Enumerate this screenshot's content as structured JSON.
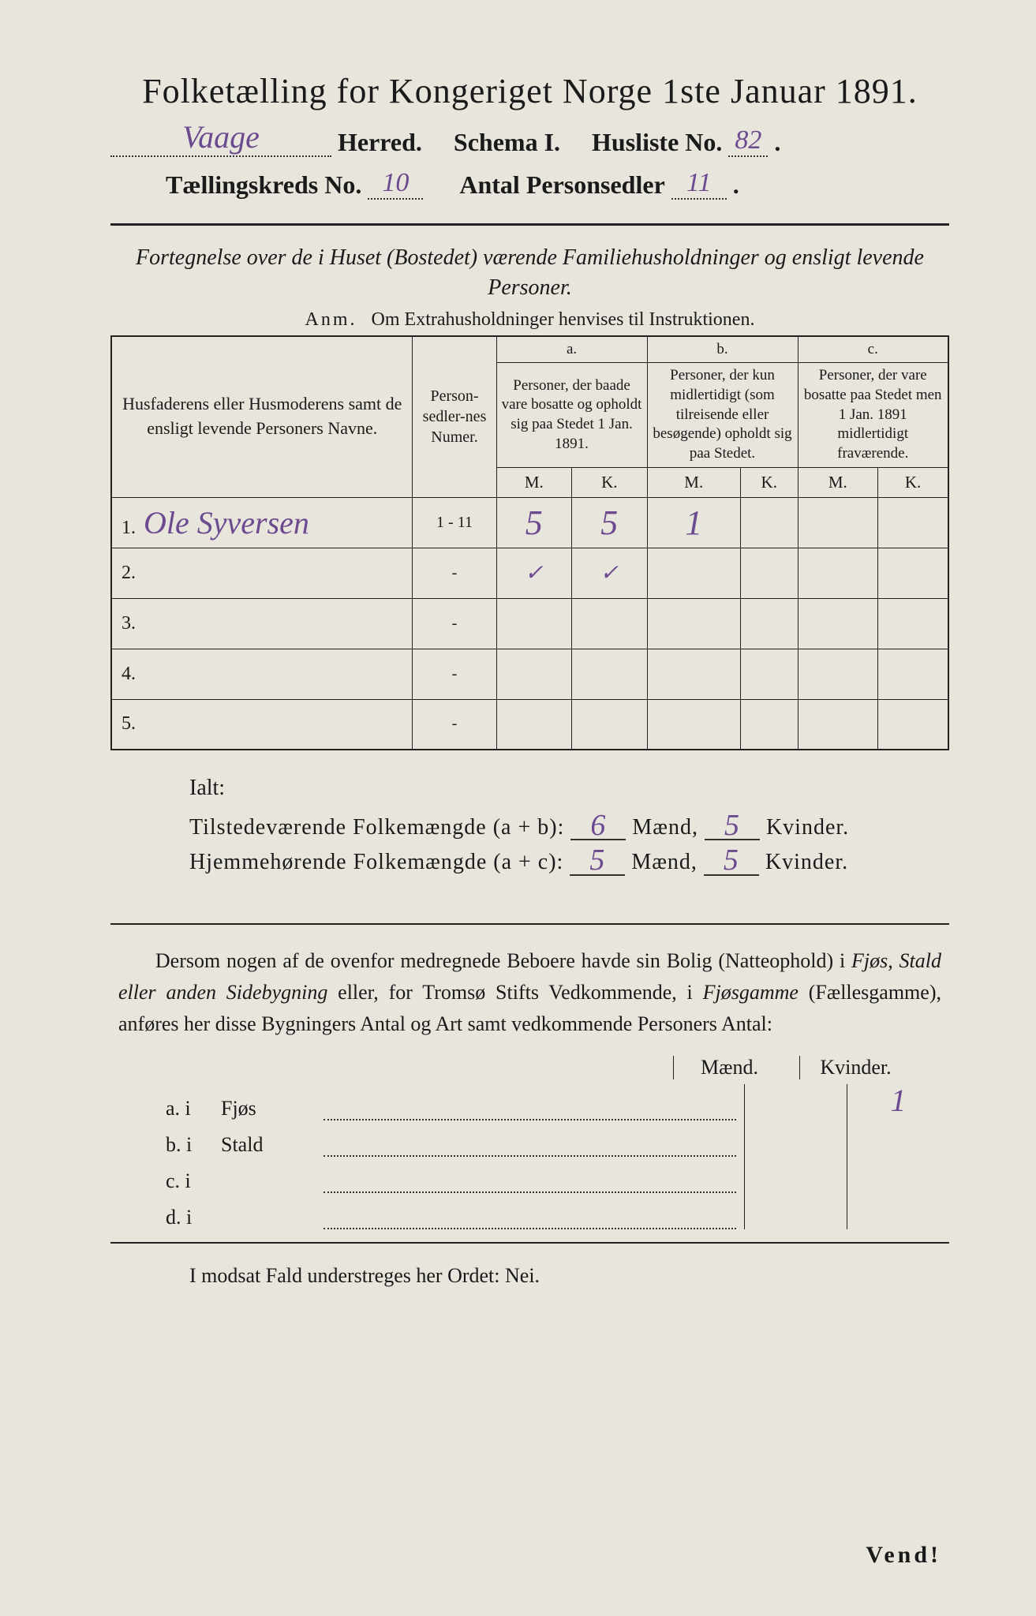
{
  "title": "Folketælling for Kongeriget Norge 1ste Januar 1891.",
  "line2": {
    "herred_value": "Vaage",
    "herred_label": "Herred.",
    "schema_label": "Schema I.",
    "husliste_label": "Husliste No.",
    "husliste_value": "82"
  },
  "line3": {
    "tk_label": "Tællingskreds No.",
    "tk_value": "10",
    "ap_label": "Antal Personsedler",
    "ap_value": "11"
  },
  "subhead": "Fortegnelse over de i Huset (Bostedet) værende Familiehusholdninger og ensligt levende Personer.",
  "anm_label": "Anm.",
  "anm_text": "Om Extrahusholdninger henvises til Instruktionen.",
  "table": {
    "head_names": "Husfaderens eller Husmoderens samt de ensligt levende Personers Navne.",
    "head_num": "Person-sedler-nes Numer.",
    "col_a_tag": "a.",
    "col_a": "Personer, der baade vare bosatte og opholdt sig paa Stedet 1 Jan. 1891.",
    "col_b_tag": "b.",
    "col_b": "Personer, der kun midlertidigt (som tilreisende eller besøgende) opholdt sig paa Stedet.",
    "col_c_tag": "c.",
    "col_c": "Personer, der vare bosatte paa Stedet men 1 Jan. 1891 midlertidigt fraværende.",
    "M": "M.",
    "K": "K.",
    "rows": [
      {
        "idx": "1.",
        "name": "Ole Syversen",
        "num": "1 - 11",
        "aM": "5",
        "aK": "5",
        "bM": "1",
        "bK": "",
        "cM": "",
        "cK": ""
      },
      {
        "idx": "2.",
        "name": "",
        "num": "-",
        "aM": "✓",
        "aK": "✓",
        "bM": "",
        "bK": "",
        "cM": "",
        "cK": ""
      },
      {
        "idx": "3.",
        "name": "",
        "num": "-",
        "aM": "",
        "aK": "",
        "bM": "",
        "bK": "",
        "cM": "",
        "cK": ""
      },
      {
        "idx": "4.",
        "name": "",
        "num": "-",
        "aM": "",
        "aK": "",
        "bM": "",
        "bK": "",
        "cM": "",
        "cK": ""
      },
      {
        "idx": "5.",
        "name": "",
        "num": "-",
        "aM": "",
        "aK": "",
        "bM": "",
        "bK": "",
        "cM": "",
        "cK": ""
      }
    ]
  },
  "ialt": "Ialt:",
  "sum1": {
    "label": "Tilstedeværende Folkemængde (a + b):",
    "men": "6",
    "men_label": "Mænd,",
    "women": "5",
    "women_label": "Kvinder."
  },
  "sum2": {
    "label": "Hjemmehørende Folkemængde (a + c):",
    "men": "5",
    "men_label": "Mænd,",
    "women": "5",
    "women_label": "Kvinder."
  },
  "para": {
    "t1": "Dersom nogen af de ovenfor medregnede Beboere havde sin Bolig (Natteophold) i ",
    "i1": "Fjøs, Stald eller anden Sidebygning",
    "t2": " eller, for Tromsø Stifts Vedkommende, i ",
    "i2": "Fjøsgamme",
    "t3": " (Fællesgamme), anføres her disse Bygningers Antal og Art samt vedkommende Personers Antal:"
  },
  "bldg": {
    "head_m": "Mænd.",
    "head_k": "Kvinder.",
    "rows": [
      {
        "lab": "a.  i",
        "type": "Fjøs",
        "m": "",
        "k": "1"
      },
      {
        "lab": "b.  i",
        "type": "Stald",
        "m": "",
        "k": ""
      },
      {
        "lab": "c.  i",
        "type": "",
        "m": "",
        "k": ""
      },
      {
        "lab": "d.  i",
        "type": "",
        "m": "",
        "k": ""
      }
    ]
  },
  "nei": "I modsat Fald understreges her Ordet: Nei.",
  "vend": "Vend!",
  "colors": {
    "paper": "#e8e5dc",
    "ink": "#1a1a1a",
    "handwriting": "#6b4a8f"
  }
}
